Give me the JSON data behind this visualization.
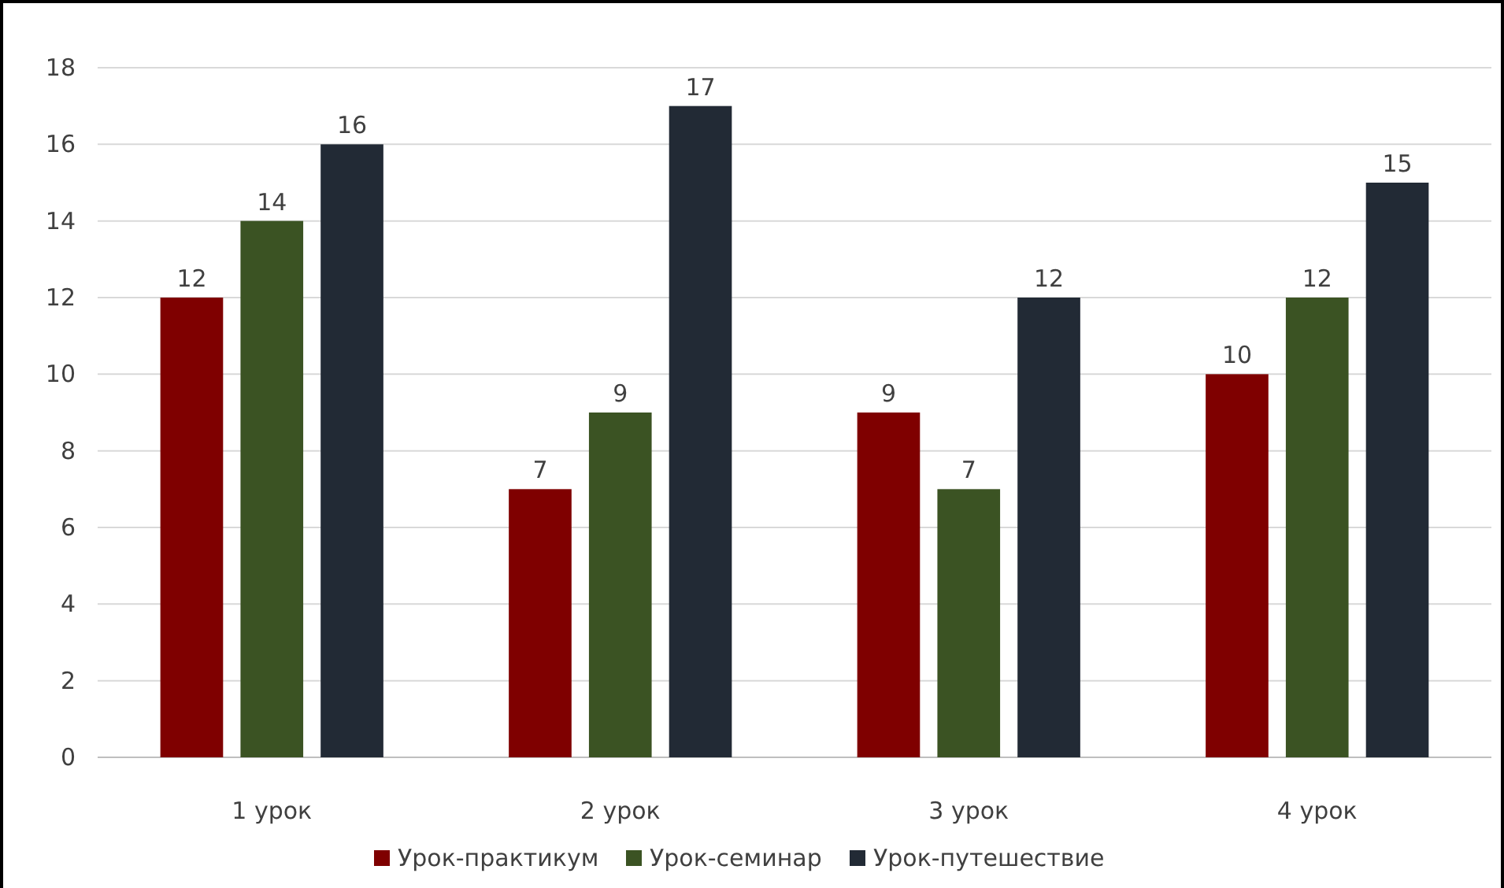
{
  "chart_data": {
    "type": "bar",
    "categories": [
      "1 урок",
      "2 урок",
      "3 урок",
      "4 урок"
    ],
    "series": [
      {
        "name": "Урок-практикум",
        "color": "#7f0000",
        "values": [
          12,
          7,
          9,
          10
        ]
      },
      {
        "name": "Урок-семинар",
        "color": "#3b5323",
        "values": [
          14,
          9,
          7,
          12
        ]
      },
      {
        "name": "Урок-путешествие",
        "color": "#222a35",
        "values": [
          16,
          17,
          12,
          15
        ]
      }
    ],
    "ylim": [
      0,
      18
    ],
    "yticks": [
      0,
      2,
      4,
      6,
      8,
      10,
      12,
      14,
      16,
      18
    ],
    "grid": "y",
    "legend": "bottom",
    "data_labels": true
  }
}
